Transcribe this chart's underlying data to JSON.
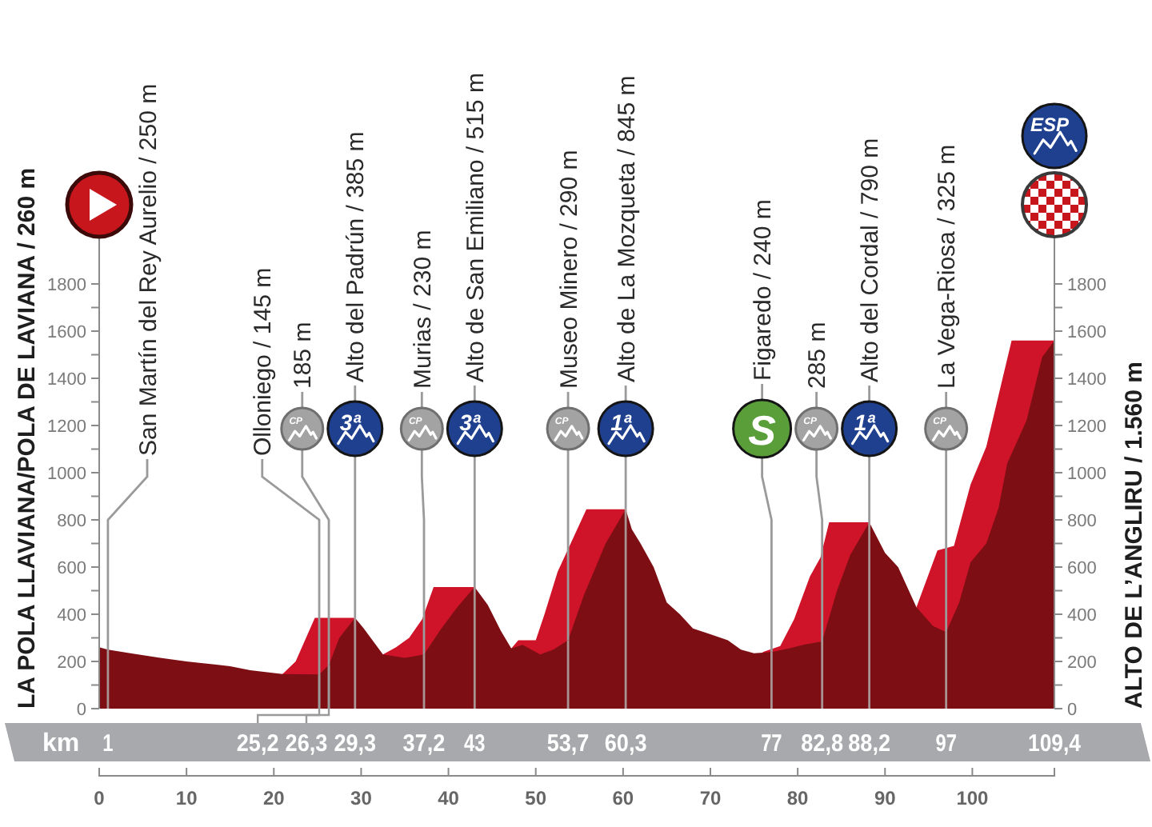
{
  "chart_data": {
    "type": "area",
    "series": [
      {
        "color": "#cf1429",
        "x": [
          21,
          22.5,
          24.7,
          29.3,
          31,
          32.5,
          34,
          35.5,
          37,
          38.3,
          43,
          45,
          47.2,
          48,
          50,
          51,
          52.5,
          54,
          55.8,
          60.3,
          70,
          76,
          78,
          79.6,
          81.4,
          82.6,
          83.6,
          88.2,
          91,
          93.6,
          96,
          97.9,
          99.8,
          101.6,
          104.5,
          109.4
        ],
        "values": [
          147,
          200,
          385,
          385,
          null,
          230,
          260,
          300,
          380,
          515,
          515,
          null,
          255,
          290,
          290,
          400,
          580,
          700,
          845,
          845,
          null,
          240,
          265,
          380,
          560,
          640,
          790,
          790,
          null,
          430,
          670,
          690,
          950,
          1110,
          1560,
          1560
        ]
      },
      {
        "color": "#7d0f14",
        "x": [
          0,
          1,
          4,
          7,
          10,
          13,
          15,
          17.3,
          21,
          25.2,
          26.3,
          27.5,
          29.3,
          30.3,
          31.5,
          32.5,
          35,
          37.2,
          39,
          41,
          43,
          44.5,
          46,
          47.2,
          48.5,
          50.5,
          52,
          53.7,
          55.5,
          58,
          60.3,
          61,
          62,
          63.5,
          65,
          66.5,
          68,
          70,
          72,
          73.5,
          75,
          77,
          79,
          80.8,
          82.8,
          84.5,
          86,
          88.2,
          90,
          91.5,
          93.6,
          95.5,
          97,
          98.5,
          99.8,
          101.6,
          103,
          104,
          106.2,
          108,
          109.4
        ],
        "values": [
          260,
          250,
          232,
          215,
          200,
          188,
          180,
          163,
          147,
          145,
          185,
          300,
          385,
          340,
          280,
          230,
          215,
          230,
          330,
          430,
          515,
          440,
          330,
          255,
          270,
          230,
          250,
          290,
          480,
          700,
          845,
          760,
          700,
          600,
          450,
          400,
          340,
          315,
          290,
          250,
          235,
          240,
          255,
          272,
          285,
          500,
          650,
          790,
          660,
          600,
          430,
          350,
          325,
          450,
          620,
          700,
          850,
          1040,
          1220,
          1490,
          1560
        ]
      }
    ],
    "xlim": [
      0,
      109.4
    ],
    "xticks": [
      0,
      10,
      20,
      30,
      40,
      50,
      60,
      70,
      80,
      90,
      100
    ],
    "ylim": [
      0,
      2000
    ],
    "yticks": [
      0,
      {
        "value": 100,
        "label": null
      },
      200,
      {
        "value": 300,
        "label": null
      },
      400,
      {
        "value": 500,
        "label": null
      },
      600,
      {
        "value": 700,
        "label": null
      },
      800,
      {
        "value": 900,
        "label": null
      },
      1000,
      {
        "value": 1100,
        "label": null
      },
      1200,
      {
        "value": 1300,
        "label": null
      },
      1400,
      {
        "value": 1500,
        "label": null
      },
      1600,
      {
        "value": 1700,
        "label": null
      },
      1800
    ],
    "y2lim": [
      0,
      2000
    ],
    "y2ticks": [
      0,
      {
        "value": 100,
        "label": null
      },
      200,
      {
        "value": 300,
        "label": null
      },
      400,
      {
        "value": 500,
        "label": null
      },
      600,
      {
        "value": 700,
        "label": null
      },
      800,
      {
        "value": 900,
        "label": null
      },
      1000,
      {
        "value": 1100,
        "label": null
      },
      1200,
      {
        "value": 1300,
        "label": null
      },
      1400,
      {
        "value": 1500,
        "label": null
      },
      1600,
      {
        "value": 1700,
        "label": null
      },
      1800
    ],
    "x2lim": [
      0,
      109.4
    ],
    "x2label": "km",
    "x2ticks": [
      1,
      {
        "value": 29.3,
        "label": "29,3"
      },
      {
        "value": 37.2,
        "label": "37,2"
      },
      43,
      {
        "value": 53.7,
        "label": "53,7"
      },
      {
        "value": 60.3,
        "label": "60,3"
      },
      77,
      {
        "value": 82.8,
        "label": "82,8"
      },
      {
        "value": 88.2,
        "label": "88,2"
      },
      97,
      {
        "value": 109.4,
        "label": "109,4"
      }
    ],
    "annotations": [
      "LA POLA LLAVIANA/POLA DE LAVIANA / 260 m",
      {
        "text": "San Martín del Rey Aurelio / 250 m",
        "x": 1,
        "y": 250
      },
      {
        "text": "Olloniego / 145 m",
        "x": 25.2,
        "y": 145
      },
      {
        "text": "185 m",
        "x": 26.3,
        "y": 185
      },
      {
        "text": "Alto del Padrún / 385 m",
        "x": 29.3,
        "y": 385
      },
      {
        "text": "Murias / 230 m",
        "x": 37.2,
        "y": 230
      },
      {
        "text": "Alto de San Emiliano / 515 m",
        "x": 43,
        "y": 515
      },
      {
        "text": "Museo Minero / 290 m",
        "x": 53.7,
        "y": 290
      },
      {
        "text": "Alto de La Mozqueta / 845 m",
        "x": 60.3,
        "y": 845
      },
      {
        "text": "Figaredo / 240 m",
        "x": 77,
        "y": 240
      },
      {
        "text": "285 m",
        "x": 82.8,
        "y": 285
      },
      {
        "text": "Alto del Cordal / 790 m",
        "x": 88.2,
        "y": 790
      },
      {
        "text": "La Vega-Riosa / 325 m",
        "x": 97,
        "y": 325
      },
      "ALTO DE L’ANGLIRU / 1.560 m",
      "ESP",
      "CP",
      "3ª",
      "CP",
      "3ª",
      "CP",
      "1ª",
      "S",
      "CP",
      "1ª",
      "CP",
      {
        "text": "25,2",
        "x": 25.2,
        "y": 145
      },
      {
        "text": "26,3",
        "x": 26.3,
        "y": 185
      }
    ]
  }
}
